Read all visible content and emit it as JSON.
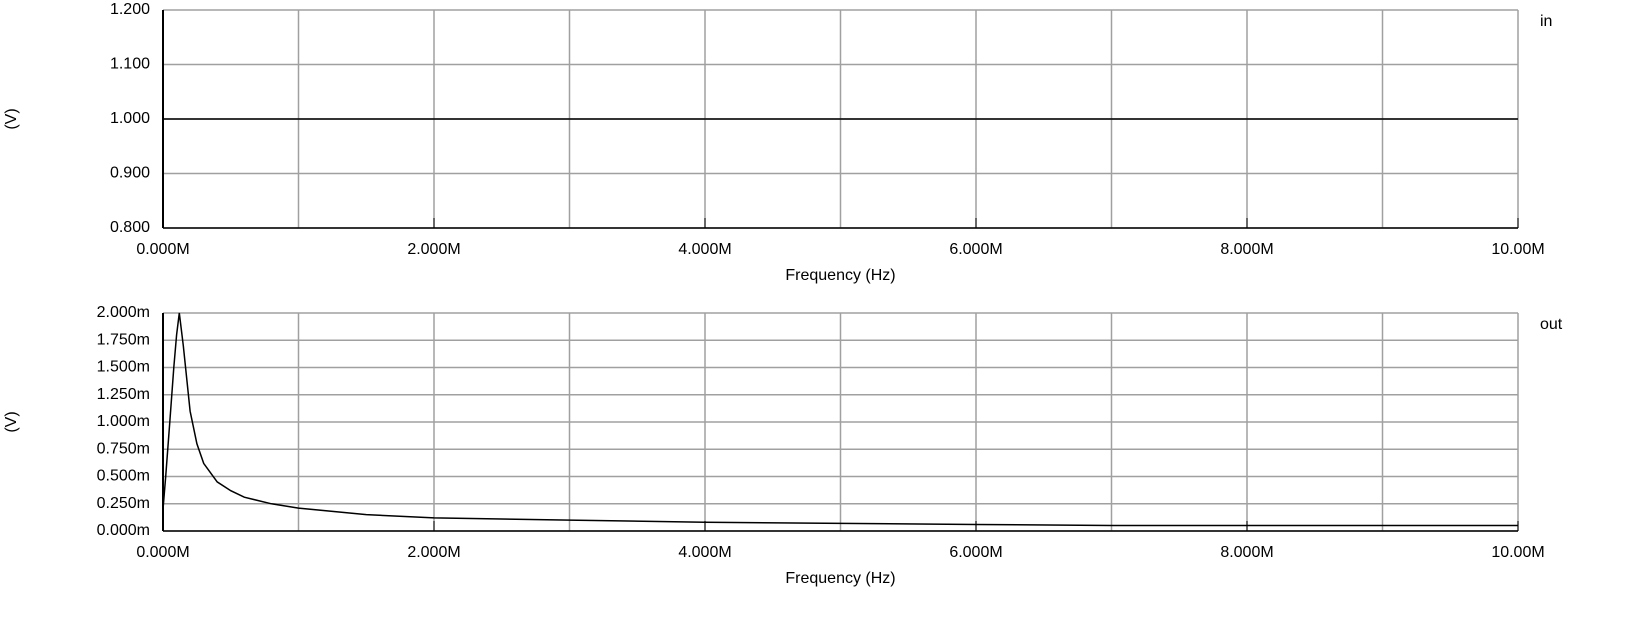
{
  "chart_data": [
    {
      "type": "line",
      "xlabel": "Frequency (Hz)",
      "ylabel": "(V)",
      "x": [
        0,
        10000000
      ],
      "series": [
        {
          "name": "in",
          "color": "#000000",
          "values": [
            1,
            1
          ]
        }
      ],
      "xlim": [
        0,
        10000000
      ],
      "ylim": [
        0.8,
        1.2
      ],
      "xticks": [
        {
          "value": 0,
          "label": "0.000M"
        },
        {
          "value": 2000000,
          "label": "2.000M"
        },
        {
          "value": 4000000,
          "label": "4.000M"
        },
        {
          "value": 6000000,
          "label": "6.000M"
        },
        {
          "value": 8000000,
          "label": "8.000M"
        },
        {
          "value": 10000000,
          "label": "10.00M"
        }
      ],
      "xgrid": [
        0,
        1000000,
        2000000,
        3000000,
        4000000,
        5000000,
        6000000,
        7000000,
        8000000,
        9000000,
        10000000
      ],
      "yticks": [
        {
          "value": 0.8,
          "label": "0.800"
        },
        {
          "value": 0.9,
          "label": "0.900"
        },
        {
          "value": 1.0,
          "label": "1.000"
        },
        {
          "value": 1.1,
          "label": "1.100"
        },
        {
          "value": 1.2,
          "label": "1.200"
        }
      ],
      "grid": true
    },
    {
      "type": "line",
      "xlabel": "Frequency (Hz)",
      "ylabel": "(V)",
      "x": [
        0,
        20000,
        50000,
        80000,
        100000,
        120000,
        150000,
        200000,
        250000,
        300000,
        400000,
        500000,
        600000,
        800000,
        1000000,
        1500000,
        2000000,
        3000000,
        4000000,
        5000000,
        6000000,
        7000000,
        8000000,
        10000000
      ],
      "series": [
        {
          "name": "out",
          "color": "#000000",
          "values": [
            0.0002,
            0.0005,
            0.001,
            0.0015,
            0.0018,
            0.002,
            0.0017,
            0.0011,
            0.0008,
            0.00062,
            0.00045,
            0.00037,
            0.00031,
            0.00025,
            0.00021,
            0.00015,
            0.00012,
            0.0001,
            8e-05,
            7e-05,
            6e-05,
            5e-05,
            5e-05,
            5e-05
          ]
        }
      ],
      "xlim": [
        0,
        10000000
      ],
      "ylim": [
        0,
        0.002
      ],
      "xticks": [
        {
          "value": 0,
          "label": "0.000M"
        },
        {
          "value": 2000000,
          "label": "2.000M"
        },
        {
          "value": 4000000,
          "label": "4.000M"
        },
        {
          "value": 6000000,
          "label": "6.000M"
        },
        {
          "value": 8000000,
          "label": "8.000M"
        },
        {
          "value": 10000000,
          "label": "10.00M"
        }
      ],
      "xgrid": [
        0,
        1000000,
        2000000,
        3000000,
        4000000,
        5000000,
        6000000,
        7000000,
        8000000,
        9000000,
        10000000
      ],
      "yticks": [
        {
          "value": 0,
          "label": "0.000m"
        },
        {
          "value": 0.00025,
          "label": "0.250m"
        },
        {
          "value": 0.0005,
          "label": "0.500m"
        },
        {
          "value": 0.00075,
          "label": "0.750m"
        },
        {
          "value": 0.001,
          "label": "1.000m"
        },
        {
          "value": 0.00125,
          "label": "1.250m"
        },
        {
          "value": 0.0015,
          "label": "1.500m"
        },
        {
          "value": 0.00175,
          "label": "1.750m"
        },
        {
          "value": 0.002,
          "label": "2.000m"
        }
      ],
      "grid": true
    }
  ]
}
